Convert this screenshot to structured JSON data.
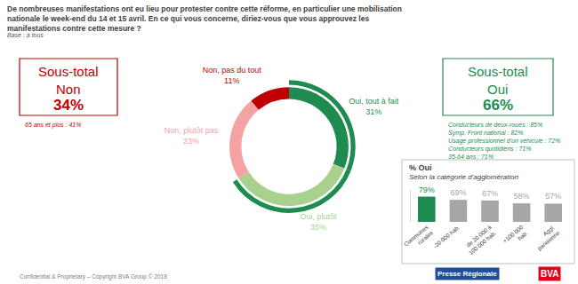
{
  "header": {
    "title": "De nombreuses manifestations ont eu lieu pour protester contre cette réforme, en particulier une mobilisation nationale le week-end du 14 et 15 avril. En ce qui vous concerne, diriez-vous que vous approuvez les manifestations contre cette mesure ?",
    "base": "Base : à tous"
  },
  "chart_data": [
    {
      "type": "pie",
      "labels": [
        "Oui, tout à fait",
        "Oui, plutôt",
        "Non, plutôt pas",
        "Non, pas du tout"
      ],
      "values": [
        31,
        35,
        23,
        11
      ],
      "value_labels": [
        "31%",
        "35%",
        "23%",
        "11%"
      ],
      "colors": [
        "#1e8c50",
        "#a9d18e",
        "#f4a3a3",
        "#c00000"
      ],
      "data_labels": true
    },
    {
      "type": "bar",
      "title": "% Oui",
      "subtitle": "Selon la catégorie d'agglomération",
      "categories": [
        "Communes rurales",
        "-20 000 hab.",
        "de 20 000 à 100 000 hab.",
        "+100 000 hab.",
        "Aggl. parisienne"
      ],
      "values": [
        79,
        69,
        67,
        58,
        57
      ],
      "value_labels": [
        "79%",
        "69%",
        "67%",
        "58%",
        "57%"
      ],
      "colors": [
        "#1e8c50",
        "#a6a6a6",
        "#a6a6a6",
        "#a6a6a6",
        "#a6a6a6"
      ],
      "ylim": [
        0,
        100
      ],
      "yticks": [],
      "tick_labels": "x",
      "data_labels": true
    }
  ],
  "subtotals": [
    {
      "title": "Sous-total Non",
      "value": "34%",
      "color": "#c00000",
      "notes": [
        "65 ans et plus : 41%"
      ]
    },
    {
      "title": "Sous-total Oui",
      "value": "66%",
      "color": "#1e8c50",
      "notes": [
        "Conducteurs de deux-roues : 85%",
        "Symp. Front national : 82%",
        "Usage professionnel d'un véhicule : 72%",
        "Conducteurs quotidiens : 71%",
        "35-64 ans : 71%"
      ]
    }
  ],
  "footer": {
    "copyright": "Confidential & Proprietary – Copyright BVA Group © 2018",
    "logos": [
      "Presse Régionale",
      "BVA"
    ]
  }
}
